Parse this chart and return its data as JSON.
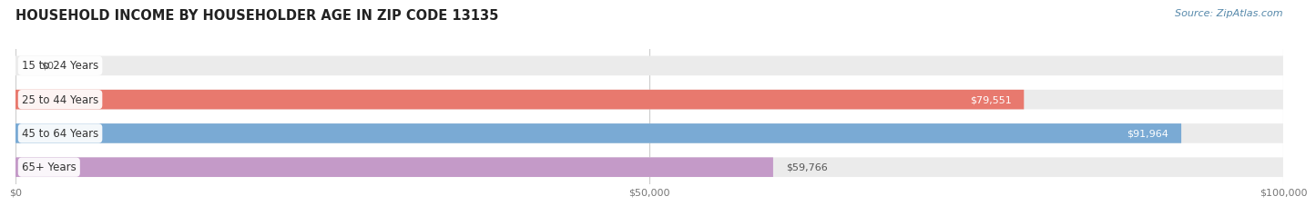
{
  "title": "HOUSEHOLD INCOME BY HOUSEHOLDER AGE IN ZIP CODE 13135",
  "source": "Source: ZipAtlas.com",
  "categories": [
    "15 to 24 Years",
    "25 to 44 Years",
    "45 to 64 Years",
    "65+ Years"
  ],
  "values": [
    0,
    79551,
    91964,
    59766
  ],
  "bar_colors": [
    "#f5c897",
    "#e8796e",
    "#7aaad4",
    "#c49ac8"
  ],
  "bar_bg_color": "#ebebeb",
  "xlim": [
    0,
    100000
  ],
  "xticks": [
    0,
    50000,
    100000
  ],
  "xtick_labels": [
    "$0",
    "$50,000",
    "$100,000"
  ],
  "value_labels": [
    "$0",
    "$79,551",
    "$91,964",
    "$59,766"
  ],
  "background_color": "#ffffff",
  "title_fontsize": 10.5,
  "source_fontsize": 8,
  "bar_label_fontsize": 8,
  "category_fontsize": 8.5,
  "figsize": [
    14.06,
    2.33
  ],
  "dpi": 100
}
